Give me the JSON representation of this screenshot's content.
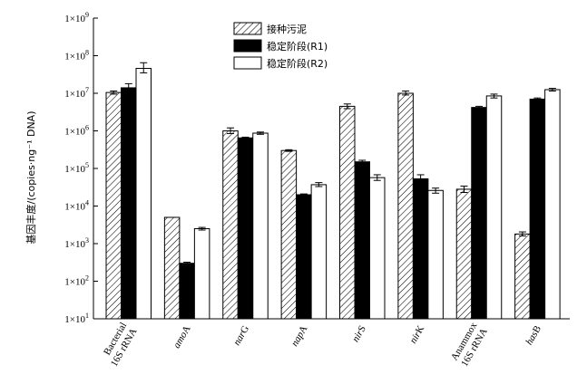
{
  "chart_data": {
    "type": "bar",
    "yscale": "log",
    "ylim": [
      10,
      1000000000
    ],
    "ylabel": "基因丰度/(copies·ng⁻¹ DNA)",
    "yticks": [
      {
        "value": 10,
        "mant": "1",
        "exp": "1"
      },
      {
        "value": 100,
        "mant": "1",
        "exp": "2"
      },
      {
        "value": 1000,
        "mant": "1",
        "exp": "3"
      },
      {
        "value": 10000,
        "mant": "1",
        "exp": "4"
      },
      {
        "value": 100000,
        "mant": "1",
        "exp": "5"
      },
      {
        "value": 1000000,
        "mant": "1",
        "exp": "6"
      },
      {
        "value": 10000000,
        "mant": "1",
        "exp": "7"
      },
      {
        "value": 100000000,
        "mant": "1",
        "exp": "8"
      },
      {
        "value": 1000000000,
        "mant": "1",
        "exp": "9"
      }
    ],
    "categories": [
      {
        "label": "Bacterial 16S rRNA",
        "parts": [
          {
            "t": "Bacterial",
            "i": false
          },
          {
            "t": "16S rRNA",
            "i": false
          }
        ]
      },
      {
        "label": "amoA",
        "parts": [
          {
            "t": "amo",
            "i": true
          },
          {
            "t": "A",
            "i": false
          }
        ]
      },
      {
        "label": "narG",
        "parts": [
          {
            "t": "nar",
            "i": true
          },
          {
            "t": "G",
            "i": false
          }
        ]
      },
      {
        "label": "napA",
        "parts": [
          {
            "t": "nap",
            "i": true
          },
          {
            "t": "A",
            "i": false
          }
        ]
      },
      {
        "label": "nirS",
        "parts": [
          {
            "t": "nir",
            "i": true
          },
          {
            "t": "S",
            "i": false
          }
        ]
      },
      {
        "label": "nirK",
        "parts": [
          {
            "t": "nir",
            "i": true
          },
          {
            "t": "K",
            "i": false
          }
        ]
      },
      {
        "label": "Anammox 16S rRNA",
        "parts": [
          {
            "t": "Anammox",
            "i": false
          },
          {
            "t": "16S rRNA",
            "i": false
          }
        ]
      },
      {
        "label": "hasB",
        "parts": [
          {
            "t": "has",
            "i": true
          },
          {
            "t": "B",
            "i": false
          }
        ]
      }
    ],
    "series": [
      {
        "name": "接种污泥",
        "fill": "hatch",
        "values": [
          10500000,
          5000,
          1000000,
          300000,
          4500000,
          10000000,
          28000,
          1800
        ],
        "err_low": [
          9500000,
          5000,
          850000,
          285000,
          3900000,
          9000000,
          23000,
          1600
        ],
        "err_high": [
          11500000,
          5000,
          1200000,
          315000,
          5200000,
          11500000,
          34000,
          2050
        ]
      },
      {
        "name": "稳定阶段(R1)",
        "fill": "#000000",
        "values": [
          14000000,
          300,
          650000,
          20000,
          150000,
          53000,
          4200000,
          7000000
        ],
        "err_low": [
          11000000,
          280,
          620000,
          19000,
          135000,
          43000,
          3900000,
          6500000
        ],
        "err_high": [
          18000000,
          320,
          680000,
          21000,
          165000,
          68000,
          4500000,
          7500000
        ]
      },
      {
        "name": "稳定阶段(R2)",
        "fill": "#ffffff",
        "values": [
          46000000,
          2500,
          870000,
          37000,
          57000,
          26000,
          8500000,
          12500000
        ],
        "err_low": [
          35000000,
          2300,
          810000,
          33000,
          48000,
          22000,
          7500000,
          11500000
        ],
        "err_high": [
          65000000,
          2700,
          930000,
          42000,
          68000,
          30000,
          9500000,
          13500000
        ]
      }
    ],
    "legend": "top-center",
    "grid": false
  }
}
